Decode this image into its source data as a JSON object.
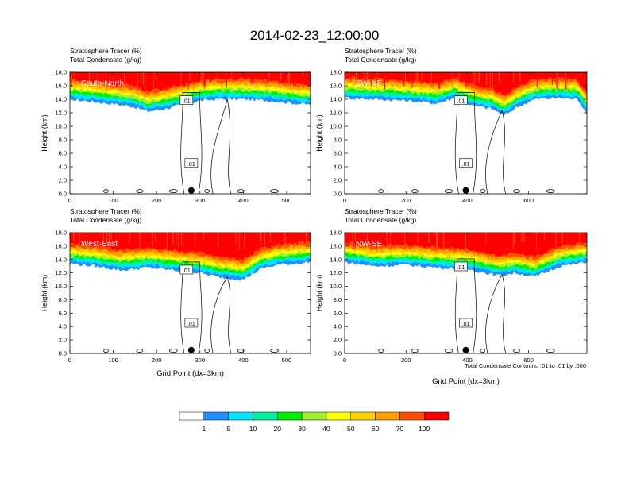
{
  "page": {
    "title": "2014-02-23_12:00:00",
    "footnote": "Total Condensate Contours: .01 to .01 by .000"
  },
  "chart_data": [
    {
      "type": "heatmap",
      "panel_label": "South-North",
      "title_line1": "Stratosphere Tracer   (%)",
      "title_line2": "Total Condensate   (g/kg)",
      "ylabel": "Height (km)",
      "xlabel": "",
      "xlim": [
        0,
        555
      ],
      "ylim": [
        0,
        18
      ],
      "xticks": [
        0,
        100,
        200,
        300,
        400,
        500
      ],
      "yticks": [
        "0.0",
        "2.0",
        "4.0",
        "6.0",
        "8.0",
        "10.0",
        "12.0",
        "14.0",
        "16.0",
        "18.0"
      ],
      "marker_x": 280,
      "contour_label": ".01",
      "base_profile": [
        [
          0,
          14.0
        ],
        [
          60,
          13.6
        ],
        [
          100,
          13.3
        ],
        [
          140,
          13.0
        ],
        [
          180,
          12.2
        ],
        [
          220,
          12.6
        ],
        [
          260,
          13.2
        ],
        [
          300,
          13.8
        ],
        [
          340,
          14.0
        ],
        [
          400,
          14.0
        ],
        [
          460,
          13.8
        ],
        [
          520,
          13.4
        ],
        [
          555,
          13.2
        ]
      ]
    },
    {
      "type": "heatmap",
      "panel_label": "SW-NE",
      "title_line1": "Stratosphere Tracer   (%)",
      "title_line2": "Total Condensate   (g/kg)",
      "ylabel": "Height (km)",
      "xlabel": "",
      "xlim": [
        0,
        790
      ],
      "ylim": [
        0,
        18
      ],
      "xticks": [
        0,
        200,
        400,
        600
      ],
      "yticks": [
        "0.0",
        "2.0",
        "4.0",
        "6.0",
        "8.0",
        "10.0",
        "12.0",
        "14.0",
        "16.0",
        "18.0"
      ],
      "marker_x": 395,
      "contour_label": ".01",
      "base_profile": [
        [
          0,
          14.2
        ],
        [
          100,
          14.0
        ],
        [
          200,
          13.8
        ],
        [
          300,
          13.4
        ],
        [
          360,
          14.2
        ],
        [
          420,
          13.0
        ],
        [
          480,
          12.6
        ],
        [
          520,
          11.6
        ],
        [
          560,
          12.8
        ],
        [
          620,
          14.0
        ],
        [
          700,
          14.2
        ],
        [
          760,
          14.0
        ],
        [
          790,
          12.0
        ]
      ]
    },
    {
      "type": "heatmap",
      "panel_label": "West-East",
      "title_line1": "Stratosphere Tracer   (%)",
      "title_line2": "Total Condensate   (g/kg)",
      "ylabel": "Height (km)",
      "xlabel": "Grid Point (dx=3km)",
      "xlim": [
        0,
        555
      ],
      "ylim": [
        0,
        18
      ],
      "xticks": [
        0,
        100,
        200,
        300,
        400,
        500
      ],
      "yticks": [
        "0.0",
        "2.0",
        "4.0",
        "6.0",
        "8.0",
        "10.0",
        "12.0",
        "14.0",
        "16.0",
        "18.0"
      ],
      "marker_x": 280,
      "contour_label": ".01",
      "base_profile": [
        [
          0,
          13.4
        ],
        [
          60,
          13.0
        ],
        [
          120,
          12.4
        ],
        [
          180,
          12.8
        ],
        [
          240,
          12.4
        ],
        [
          300,
          12.0
        ],
        [
          340,
          11.4
        ],
        [
          400,
          11.0
        ],
        [
          440,
          12.6
        ],
        [
          480,
          13.2
        ],
        [
          555,
          13.6
        ]
      ]
    },
    {
      "type": "heatmap",
      "panel_label": "NW-SE",
      "title_line1": "Stratosphere Tracer   (%)",
      "title_line2": "Total Condensate   (g/kg)",
      "ylabel": "Height (km)",
      "xlabel": "Grid Point (dx=3km)",
      "xlim": [
        0,
        790
      ],
      "ylim": [
        0,
        18
      ],
      "xticks": [
        0,
        200,
        400,
        600
      ],
      "yticks": [
        "0.0",
        "2.0",
        "4.0",
        "6.0",
        "8.0",
        "10.0",
        "12.0",
        "14.0",
        "16.0",
        "18.0"
      ],
      "marker_x": 395,
      "contour_label": ".01",
      "base_profile": [
        [
          0,
          13.6
        ],
        [
          100,
          13.0
        ],
        [
          200,
          13.2
        ],
        [
          300,
          12.8
        ],
        [
          400,
          12.6
        ],
        [
          500,
          11.6
        ],
        [
          560,
          12.0
        ],
        [
          620,
          11.4
        ],
        [
          700,
          13.0
        ],
        [
          790,
          13.6
        ]
      ]
    }
  ],
  "colorbar": {
    "labels": [
      "1",
      "5",
      "10",
      "20",
      "30",
      "40",
      "50",
      "60",
      "70",
      "100"
    ],
    "colors": [
      "#ffffff",
      "#1e90ff",
      "#00e5ff",
      "#00f0a0",
      "#00ee00",
      "#a0ee30",
      "#ffff00",
      "#ffd000",
      "#ffa000",
      "#ff5000",
      "#ff0000"
    ]
  }
}
